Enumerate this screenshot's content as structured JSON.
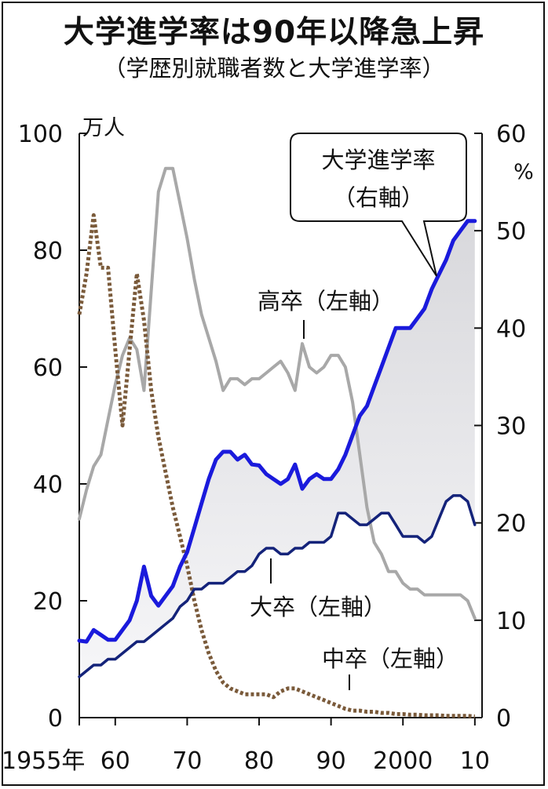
{
  "chart_data": {
    "type": "line",
    "title": "大学進学率は90年以降急上昇",
    "subtitle": "（学歴別就職者数と大学進学率）",
    "left_axis": {
      "unit": "万人",
      "ylim": [
        0,
        100
      ],
      "ticks": [
        0,
        20,
        40,
        60,
        80,
        100
      ]
    },
    "right_axis": {
      "unit": "%",
      "ylim": [
        0,
        60
      ],
      "ticks": [
        0,
        10,
        20,
        30,
        40,
        50,
        60
      ]
    },
    "x_axis": {
      "range": [
        1955,
        2011
      ],
      "ticks": [
        {
          "value": 1955,
          "label": "1955年"
        },
        {
          "value": 1960,
          "label": "60"
        },
        {
          "value": 1970,
          "label": "70"
        },
        {
          "value": 1980,
          "label": "80"
        },
        {
          "value": 1990,
          "label": "90"
        },
        {
          "value": 2000,
          "label": "2000"
        },
        {
          "value": 2010,
          "label": "10"
        }
      ]
    },
    "series": [
      {
        "name": "高卒（左軸）",
        "axis": "left",
        "color": "#a8a8a8",
        "style": "solid",
        "x": [
          1955,
          1956,
          1957,
          1958,
          1959,
          1960,
          1961,
          1962,
          1963,
          1964,
          1965,
          1966,
          1967,
          1968,
          1969,
          1970,
          1971,
          1972,
          1973,
          1974,
          1975,
          1976,
          1977,
          1978,
          1979,
          1980,
          1981,
          1982,
          1983,
          1984,
          1985,
          1986,
          1987,
          1988,
          1989,
          1990,
          1991,
          1992,
          1993,
          1994,
          1995,
          1996,
          1997,
          1998,
          1999,
          2000,
          2001,
          2002,
          2003,
          2004,
          2005,
          2006,
          2007,
          2008,
          2009,
          2010
        ],
        "y": [
          34,
          39,
          43,
          45,
          51,
          57,
          62,
          65,
          63,
          56,
          73,
          90,
          94,
          94,
          88,
          82,
          75,
          69,
          65,
          61,
          56,
          58,
          58,
          57,
          58,
          58,
          59,
          60,
          61,
          59,
          56,
          64,
          60,
          59,
          60,
          62,
          62,
          60,
          54,
          45,
          36,
          30,
          28,
          25,
          25,
          23,
          22,
          22,
          21,
          21,
          21,
          21,
          21,
          21,
          20,
          17
        ]
      },
      {
        "name": "中卒（左軸）",
        "axis": "left",
        "color": "#7a5a3a",
        "style": "dotted",
        "x": [
          1955,
          1956,
          1957,
          1958,
          1959,
          1960,
          1961,
          1962,
          1963,
          1964,
          1965,
          1966,
          1967,
          1968,
          1969,
          1970,
          1971,
          1972,
          1973,
          1974,
          1975,
          1976,
          1977,
          1978,
          1979,
          1980,
          1981,
          1982,
          1983,
          1984,
          1985,
          1986,
          1987,
          1988,
          1989,
          1990,
          1991,
          1992,
          1993,
          1994,
          1995,
          1996,
          1997,
          1998,
          1999,
          2000,
          2001,
          2002,
          2003,
          2004,
          2005,
          2006,
          2007,
          2008,
          2009,
          2010
        ],
        "y": [
          69,
          76,
          86,
          77,
          77,
          63,
          50,
          63,
          76,
          68,
          56,
          48,
          42,
          36,
          31,
          26,
          20,
          15,
          11,
          8,
          6,
          5,
          4.5,
          4,
          4,
          4,
          4,
          3.5,
          4.5,
          5,
          5,
          4.5,
          4,
          3.5,
          3,
          2.5,
          2,
          1.5,
          1.2,
          1.2,
          1,
          1,
          0.8,
          0.8,
          0.6,
          0.6,
          0.5,
          0.5,
          0.4,
          0.4,
          0.4,
          0.3,
          0.3,
          0.3,
          0.3,
          0.2
        ]
      },
      {
        "name": "大卒（左軸）",
        "axis": "left",
        "color": "#14237a",
        "style": "solid",
        "x": [
          1955,
          1956,
          1957,
          1958,
          1959,
          1960,
          1961,
          1962,
          1963,
          1964,
          1965,
          1966,
          1967,
          1968,
          1969,
          1970,
          1971,
          1972,
          1973,
          1974,
          1975,
          1976,
          1977,
          1978,
          1979,
          1980,
          1981,
          1982,
          1983,
          1984,
          1985,
          1986,
          1987,
          1988,
          1989,
          1990,
          1991,
          1992,
          1993,
          1994,
          1995,
          1996,
          1997,
          1998,
          1999,
          2000,
          2001,
          2002,
          2003,
          2004,
          2005,
          2006,
          2007,
          2008,
          2009,
          2010
        ],
        "y": [
          7,
          8,
          9,
          9,
          10,
          10,
          11,
          12,
          13,
          13,
          14,
          15,
          16,
          17,
          19,
          20,
          22,
          22,
          23,
          23,
          23,
          24,
          25,
          25,
          26,
          28,
          29,
          29,
          28,
          28,
          29,
          29,
          30,
          30,
          30,
          31,
          35,
          35,
          34,
          33,
          33,
          34,
          35,
          35,
          33,
          31,
          31,
          31,
          30,
          31,
          34,
          37,
          38,
          38,
          37,
          33
        ]
      },
      {
        "name": "大学進学率（右軸）",
        "axis": "right",
        "color": "#1a1adc",
        "style": "solid",
        "x": [
          1955,
          1956,
          1957,
          1958,
          1959,
          1960,
          1961,
          1962,
          1963,
          1964,
          1965,
          1966,
          1967,
          1968,
          1969,
          1970,
          1971,
          1972,
          1973,
          1974,
          1975,
          1976,
          1977,
          1978,
          1979,
          1980,
          1981,
          1982,
          1983,
          1984,
          1985,
          1986,
          1987,
          1988,
          1989,
          1990,
          1991,
          1992,
          1993,
          1994,
          1995,
          1996,
          1997,
          1998,
          1999,
          2000,
          2001,
          2002,
          2003,
          2004,
          2005,
          2006,
          2007,
          2008,
          2009,
          2010
        ],
        "y": [
          7.9,
          7.8,
          9,
          8.5,
          8,
          8,
          9,
          10,
          12,
          15.5,
          12.5,
          11.5,
          12.5,
          13.5,
          15.5,
          17,
          19.5,
          22,
          24.5,
          26.5,
          27.3,
          27.3,
          26.5,
          27,
          26,
          25.9,
          25,
          24.5,
          24,
          24.5,
          26,
          23.5,
          24.5,
          25,
          24.5,
          24.5,
          25.5,
          27,
          29,
          31,
          32,
          34,
          36,
          38,
          40,
          40,
          40,
          41,
          42,
          44,
          45.5,
          47,
          49,
          50,
          51,
          51
        ]
      }
    ],
    "annotations": [
      "大学進学率（右軸）",
      "高卒（左軸）",
      "大卒（左軸）",
      "中卒（左軸）"
    ]
  },
  "labels": {
    "callout_line1": "大学進学率",
    "callout_line2": "（右軸）",
    "high_school": "高卒（左軸）",
    "university": "大卒（左軸）",
    "junior_high": "中卒（左軸）"
  }
}
